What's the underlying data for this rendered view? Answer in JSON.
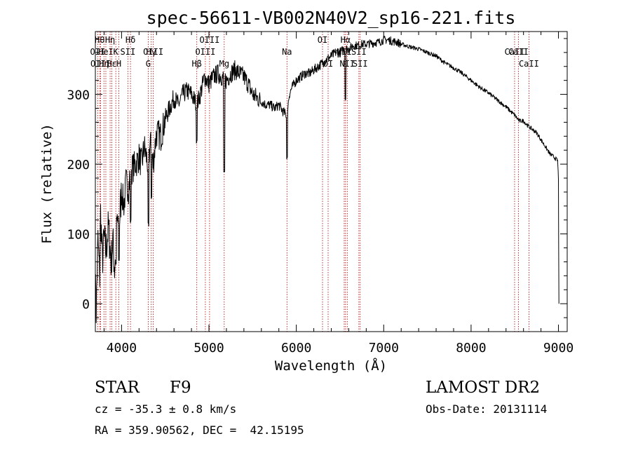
{
  "chart_data": {
    "type": "line",
    "title": "spec-56611-VB002N40V2_sp16-221.fits",
    "xlabel": "Wavelength (Å)",
    "ylabel": "Flux (relative)",
    "xlim": [
      3700,
      9100
    ],
    "ylim": [
      -40,
      390
    ],
    "xticks": [
      4000,
      5000,
      6000,
      7000,
      8000,
      9000
    ],
    "yticks": [
      0,
      100,
      200,
      300
    ],
    "grid": false,
    "colors": {
      "line": "#000000",
      "marker": "#b00000"
    },
    "spectrum_points": [
      [
        3700,
        30
      ],
      [
        3710,
        -10
      ],
      [
        3730,
        90
      ],
      [
        3750,
        40
      ],
      [
        3760,
        130
      ],
      [
        3780,
        60
      ],
      [
        3800,
        95
      ],
      [
        3820,
        75
      ],
      [
        3850,
        110
      ],
      [
        3880,
        60
      ],
      [
        3900,
        90
      ],
      [
        3920,
        50
      ],
      [
        3950,
        120
      ],
      [
        3970,
        110
      ],
      [
        4000,
        160
      ],
      [
        4030,
        140
      ],
      [
        4050,
        175
      ],
      [
        4080,
        165
      ],
      [
        4100,
        190
      ],
      [
        4130,
        195
      ],
      [
        4160,
        200
      ],
      [
        4200,
        210
      ],
      [
        4230,
        200
      ],
      [
        4260,
        225
      ],
      [
        4300,
        200
      ],
      [
        4330,
        230
      ],
      [
        4360,
        200
      ],
      [
        4400,
        245
      ],
      [
        4450,
        240
      ],
      [
        4500,
        265
      ],
      [
        4550,
        280
      ],
      [
        4600,
        295
      ],
      [
        4650,
        285
      ],
      [
        4700,
        300
      ],
      [
        4750,
        305
      ],
      [
        4800,
        300
      ],
      [
        4860,
        285
      ],
      [
        4900,
        300
      ],
      [
        4950,
        325
      ],
      [
        5000,
        315
      ],
      [
        5050,
        325
      ],
      [
        5100,
        330
      ],
      [
        5150,
        325
      ],
      [
        5200,
        320
      ],
      [
        5250,
        330
      ],
      [
        5300,
        335
      ],
      [
        5350,
        330
      ],
      [
        5400,
        325
      ],
      [
        5450,
        315
      ],
      [
        5500,
        300
      ],
      [
        5550,
        295
      ],
      [
        5600,
        290
      ],
      [
        5650,
        285
      ],
      [
        5700,
        285
      ],
      [
        5750,
        280
      ],
      [
        5800,
        285
      ],
      [
        5850,
        275
      ],
      [
        5890,
        270
      ],
      [
        5920,
        300
      ],
      [
        5950,
        310
      ],
      [
        6000,
        320
      ],
      [
        6050,
        325
      ],
      [
        6100,
        330
      ],
      [
        6150,
        330
      ],
      [
        6200,
        335
      ],
      [
        6250,
        340
      ],
      [
        6300,
        345
      ],
      [
        6350,
        350
      ],
      [
        6400,
        355
      ],
      [
        6450,
        360
      ],
      [
        6500,
        360
      ],
      [
        6550,
        365
      ],
      [
        6600,
        365
      ],
      [
        6650,
        370
      ],
      [
        6700,
        370
      ],
      [
        6750,
        372
      ],
      [
        6800,
        372
      ],
      [
        6850,
        373
      ],
      [
        6900,
        374
      ],
      [
        6950,
        375
      ],
      [
        7000,
        378
      ],
      [
        7050,
        378
      ],
      [
        7100,
        376
      ],
      [
        7150,
        375
      ],
      [
        7200,
        372
      ],
      [
        7300,
        368
      ],
      [
        7400,
        365
      ],
      [
        7500,
        360
      ],
      [
        7600,
        355
      ],
      [
        7700,
        345
      ],
      [
        7800,
        338
      ],
      [
        7900,
        330
      ],
      [
        8000,
        320
      ],
      [
        8100,
        310
      ],
      [
        8200,
        302
      ],
      [
        8300,
        292
      ],
      [
        8400,
        282
      ],
      [
        8500,
        270
      ],
      [
        8550,
        262
      ],
      [
        8600,
        262
      ],
      [
        8650,
        255
      ],
      [
        8700,
        250
      ],
      [
        8750,
        245
      ],
      [
        8800,
        235
      ],
      [
        8850,
        225
      ],
      [
        8900,
        215
      ],
      [
        8950,
        210
      ],
      [
        8990,
        205
      ],
      [
        9000,
        180
      ],
      [
        9005,
        0
      ]
    ],
    "absorption_dips": [
      {
        "x": 3934,
        "bottom": 55
      },
      {
        "x": 3969,
        "bottom": 60
      },
      {
        "x": 4102,
        "bottom": 115
      },
      {
        "x": 4308,
        "bottom": 110
      },
      {
        "x": 4340,
        "bottom": 150
      },
      {
        "x": 4861,
        "bottom": 230
      },
      {
        "x": 5175,
        "bottom": 185
      },
      {
        "x": 5893,
        "bottom": 205
      },
      {
        "x": 6563,
        "bottom": 290
      }
    ],
    "line_markers": [
      {
        "x": 3727,
        "label": "OII",
        "row": 2
      },
      {
        "x": 3750,
        "label": "Hθ",
        "row": 0
      },
      {
        "x": 3760,
        "label": "OIII",
        "row": 3
      },
      {
        "x": 3798,
        "label": "Hη",
        "row": 3
      },
      {
        "x": 3820,
        "label": "HeI",
        "row": 2
      },
      {
        "x": 3869,
        "label": "Hη",
        "row": 0
      },
      {
        "x": 3889,
        "label": "Hε",
        "row": 3
      },
      {
        "x": 3934,
        "label": "K",
        "row": 1
      },
      {
        "x": 3969,
        "label": "H",
        "row": 3
      },
      {
        "x": 4072,
        "label": "SII",
        "row": 2
      },
      {
        "x": 4102,
        "label": "Hδ",
        "row": 0
      },
      {
        "x": 4305,
        "label": "G",
        "row": 3
      },
      {
        "x": 4340,
        "label": "Hγ",
        "row": 2
      },
      {
        "x": 4363,
        "label": "OIII",
        "row": 1
      },
      {
        "x": 4861,
        "label": "Hβ",
        "row": 3
      },
      {
        "x": 4959,
        "label": "OIII",
        "row": 2
      },
      {
        "x": 5007,
        "label": "OIII",
        "row": 0
      },
      {
        "x": 5175,
        "label": "Mg",
        "row": 3
      },
      {
        "x": 5893,
        "label": "Na",
        "row": 2
      },
      {
        "x": 6300,
        "label": "OI",
        "row": 0
      },
      {
        "x": 6364,
        "label": "OI",
        "row": 3
      },
      {
        "x": 6548,
        "label": "NII",
        "row": 1
      },
      {
        "x": 6563,
        "label": "Hα",
        "row": 0
      },
      {
        "x": 6583,
        "label": "NII",
        "row": 3
      },
      {
        "x": 6716,
        "label": "SII",
        "row": 1
      },
      {
        "x": 6731,
        "label": "SII",
        "row": 3
      },
      {
        "x": 8498,
        "label": "CaII",
        "row": 2
      },
      {
        "x": 8542,
        "label": "CaII",
        "row": 1
      },
      {
        "x": 8662,
        "label": "CaII",
        "row": 3
      }
    ]
  },
  "info": {
    "object_class": "STAR",
    "subclass": "F9",
    "survey": "LAMOST DR2",
    "redshift_line": "cz = -35.3 ± 0.8 km/s",
    "obs_date": "Obs-Date: 20131114",
    "coords_line": "RA = 359.90562, DEC =  42.15195"
  }
}
